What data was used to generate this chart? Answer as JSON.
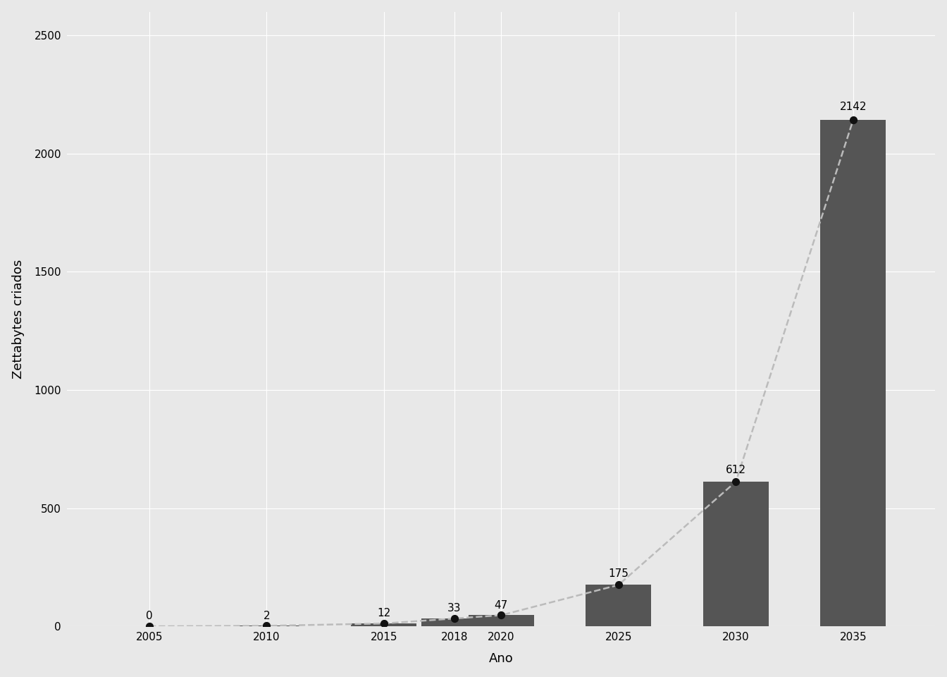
{
  "years": [
    2005,
    2010,
    2015,
    2018,
    2020,
    2025,
    2030,
    2035
  ],
  "values": [
    0,
    2,
    12,
    33,
    47,
    175,
    612,
    2142
  ],
  "bar_color": "#555555",
  "dot_color": "#111111",
  "line_color": "#bbbbbb",
  "bg_color": "#e8e8e8",
  "panel_color": "#e8e8e8",
  "grid_color": "#ffffff",
  "xlabel": "Ano",
  "ylabel": "Zettabytes criados",
  "ylim": [
    0,
    2600
  ],
  "yticks": [
    0,
    500,
    1000,
    1500,
    2000,
    2500
  ],
  "bar_width": 2.8,
  "label_fontsize": 11,
  "axis_fontsize": 13,
  "tick_fontsize": 11
}
